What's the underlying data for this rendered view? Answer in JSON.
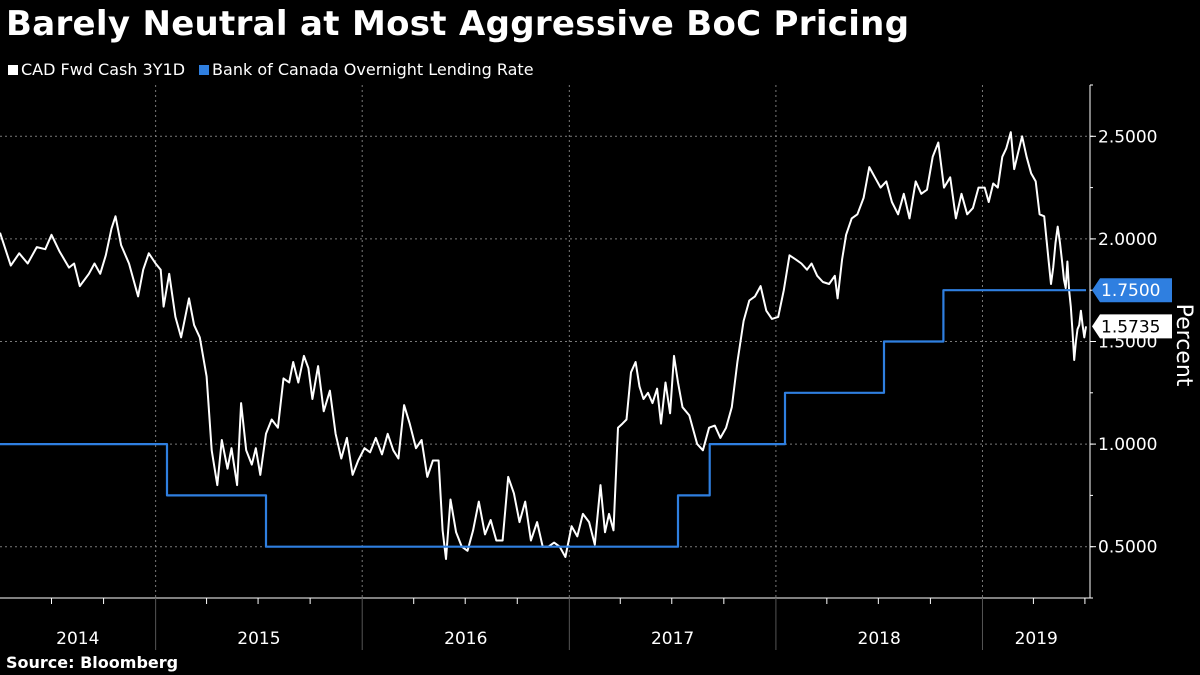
{
  "title": "Barely Neutral at Most Aggressive BoC Pricing",
  "source": "Source: Bloomberg",
  "colors": {
    "background": "#000000",
    "cad_fwd": "#ffffff",
    "boc_rate": "#2f7fe0",
    "grid": "#7a7a7a"
  },
  "chart_data": {
    "type": "line",
    "title": "Barely Neutral at Most Aggressive BoC Pricing",
    "xlabel": "",
    "ylabel": "Percent",
    "ylim": [
      0.25,
      2.75
    ],
    "xlim": [
      "2014-04-01",
      "2019-06-01"
    ],
    "y_ticks": [
      "0.5000",
      "1.0000",
      "1.5000",
      "2.0000",
      "2.5000"
    ],
    "x_ticks": [
      "2014",
      "2015",
      "2016",
      "2017",
      "2018",
      "2019"
    ],
    "grid": true,
    "legend_position": "top-left",
    "series": [
      {
        "name": "CAD Fwd Cash 3Y1D",
        "last_value": "1.5735",
        "points": [
          [
            "2014-04-01",
            2.03
          ],
          [
            "2014-04-20",
            1.87
          ],
          [
            "2014-05-05",
            1.93
          ],
          [
            "2014-05-20",
            1.88
          ],
          [
            "2014-06-05",
            1.96
          ],
          [
            "2014-06-20",
            1.95
          ],
          [
            "2014-07-01",
            2.02
          ],
          [
            "2014-07-15",
            1.94
          ],
          [
            "2014-08-01",
            1.86
          ],
          [
            "2014-08-10",
            1.88
          ],
          [
            "2014-08-20",
            1.77
          ],
          [
            "2014-09-05",
            1.83
          ],
          [
            "2014-09-15",
            1.88
          ],
          [
            "2014-09-25",
            1.83
          ],
          [
            "2014-10-05",
            1.92
          ],
          [
            "2014-10-15",
            2.05
          ],
          [
            "2014-10-22",
            2.11
          ],
          [
            "2014-11-01",
            1.97
          ],
          [
            "2014-11-15",
            1.88
          ],
          [
            "2014-12-01",
            1.72
          ],
          [
            "2014-12-10",
            1.85
          ],
          [
            "2014-12-20",
            1.93
          ],
          [
            "2015-01-01",
            1.88
          ],
          [
            "2015-01-10",
            1.85
          ],
          [
            "2015-01-15",
            1.67
          ],
          [
            "2015-01-25",
            1.83
          ],
          [
            "2015-02-05",
            1.62
          ],
          [
            "2015-02-15",
            1.52
          ],
          [
            "2015-03-01",
            1.71
          ],
          [
            "2015-03-10",
            1.58
          ],
          [
            "2015-03-20",
            1.52
          ],
          [
            "2015-04-01",
            1.33
          ],
          [
            "2015-04-10",
            0.97
          ],
          [
            "2015-04-20",
            0.8
          ],
          [
            "2015-04-28",
            1.02
          ],
          [
            "2015-05-08",
            0.88
          ],
          [
            "2015-05-15",
            0.98
          ],
          [
            "2015-05-25",
            0.8
          ],
          [
            "2015-06-01",
            1.2
          ],
          [
            "2015-06-10",
            0.97
          ],
          [
            "2015-06-20",
            0.9
          ],
          [
            "2015-06-27",
            0.98
          ],
          [
            "2015-07-05",
            0.85
          ],
          [
            "2015-07-15",
            1.05
          ],
          [
            "2015-07-25",
            1.12
          ],
          [
            "2015-08-05",
            1.08
          ],
          [
            "2015-08-15",
            1.32
          ],
          [
            "2015-08-25",
            1.3
          ],
          [
            "2015-09-01",
            1.4
          ],
          [
            "2015-09-10",
            1.3
          ],
          [
            "2015-09-20",
            1.43
          ],
          [
            "2015-09-28",
            1.37
          ],
          [
            "2015-10-05",
            1.22
          ],
          [
            "2015-10-15",
            1.38
          ],
          [
            "2015-10-25",
            1.16
          ],
          [
            "2015-11-05",
            1.26
          ],
          [
            "2015-11-15",
            1.05
          ],
          [
            "2015-11-25",
            0.93
          ],
          [
            "2015-12-05",
            1.03
          ],
          [
            "2015-12-15",
            0.85
          ],
          [
            "2015-12-25",
            0.92
          ],
          [
            "2016-01-05",
            0.98
          ],
          [
            "2016-01-15",
            0.96
          ],
          [
            "2016-01-25",
            1.03
          ],
          [
            "2016-02-05",
            0.95
          ],
          [
            "2016-02-15",
            1.05
          ],
          [
            "2016-02-25",
            0.97
          ],
          [
            "2016-03-05",
            0.93
          ],
          [
            "2016-03-15",
            1.19
          ],
          [
            "2016-03-25",
            1.1
          ],
          [
            "2016-04-05",
            0.98
          ],
          [
            "2016-04-15",
            1.02
          ],
          [
            "2016-04-25",
            0.84
          ],
          [
            "2016-05-05",
            0.92
          ],
          [
            "2016-05-15",
            0.92
          ],
          [
            "2016-05-22",
            0.58
          ],
          [
            "2016-05-28",
            0.44
          ],
          [
            "2016-06-05",
            0.73
          ],
          [
            "2016-06-15",
            0.57
          ],
          [
            "2016-06-25",
            0.5
          ],
          [
            "2016-07-05",
            0.48
          ],
          [
            "2016-07-15",
            0.58
          ],
          [
            "2016-07-25",
            0.72
          ],
          [
            "2016-08-05",
            0.56
          ],
          [
            "2016-08-15",
            0.63
          ],
          [
            "2016-08-25",
            0.53
          ],
          [
            "2016-09-05",
            0.53
          ],
          [
            "2016-09-15",
            0.84
          ],
          [
            "2016-09-25",
            0.76
          ],
          [
            "2016-10-05",
            0.62
          ],
          [
            "2016-10-15",
            0.72
          ],
          [
            "2016-10-25",
            0.53
          ],
          [
            "2016-11-05",
            0.62
          ],
          [
            "2016-11-15",
            0.5
          ],
          [
            "2016-11-25",
            0.5
          ],
          [
            "2016-12-05",
            0.52
          ],
          [
            "2016-12-15",
            0.5
          ],
          [
            "2016-12-25",
            0.45
          ],
          [
            "2017-01-05",
            0.6
          ],
          [
            "2017-01-15",
            0.55
          ],
          [
            "2017-01-25",
            0.66
          ],
          [
            "2017-02-05",
            0.62
          ],
          [
            "2017-02-15",
            0.51
          ],
          [
            "2017-02-25",
            0.8
          ],
          [
            "2017-03-05",
            0.57
          ],
          [
            "2017-03-12",
            0.66
          ],
          [
            "2017-03-20",
            0.58
          ],
          [
            "2017-03-28",
            1.08
          ],
          [
            "2017-04-05",
            1.1
          ],
          [
            "2017-04-12",
            1.12
          ],
          [
            "2017-04-20",
            1.35
          ],
          [
            "2017-04-28",
            1.4
          ],
          [
            "2017-05-05",
            1.28
          ],
          [
            "2017-05-12",
            1.22
          ],
          [
            "2017-05-20",
            1.25
          ],
          [
            "2017-05-28",
            1.2
          ],
          [
            "2017-06-05",
            1.27
          ],
          [
            "2017-06-12",
            1.1
          ],
          [
            "2017-06-20",
            1.3
          ],
          [
            "2017-06-28",
            1.15
          ],
          [
            "2017-07-05",
            1.43
          ],
          [
            "2017-07-12",
            1.3
          ],
          [
            "2017-07-20",
            1.18
          ],
          [
            "2017-08-01",
            1.14
          ],
          [
            "2017-08-15",
            1.0
          ],
          [
            "2017-08-25",
            0.97
          ],
          [
            "2017-09-05",
            1.08
          ],
          [
            "2017-09-15",
            1.09
          ],
          [
            "2017-09-25",
            1.03
          ],
          [
            "2017-10-05",
            1.08
          ],
          [
            "2017-10-15",
            1.18
          ],
          [
            "2017-10-25",
            1.4
          ],
          [
            "2017-11-05",
            1.6
          ],
          [
            "2017-11-15",
            1.7
          ],
          [
            "2017-11-25",
            1.72
          ],
          [
            "2017-12-05",
            1.77
          ],
          [
            "2017-12-15",
            1.65
          ],
          [
            "2017-12-25",
            1.61
          ],
          [
            "2018-01-05",
            1.62
          ],
          [
            "2018-01-15",
            1.75
          ],
          [
            "2018-01-25",
            1.92
          ],
          [
            "2018-02-05",
            1.9
          ],
          [
            "2018-02-15",
            1.88
          ],
          [
            "2018-02-25",
            1.85
          ],
          [
            "2018-03-05",
            1.88
          ],
          [
            "2018-03-15",
            1.82
          ],
          [
            "2018-03-25",
            1.79
          ],
          [
            "2018-04-05",
            1.78
          ],
          [
            "2018-04-15",
            1.82
          ],
          [
            "2018-04-20",
            1.71
          ],
          [
            "2018-04-28",
            1.9
          ],
          [
            "2018-05-05",
            2.02
          ],
          [
            "2018-05-15",
            2.1
          ],
          [
            "2018-05-25",
            2.12
          ],
          [
            "2018-06-05",
            2.2
          ],
          [
            "2018-06-15",
            2.35
          ],
          [
            "2018-06-25",
            2.3
          ],
          [
            "2018-07-05",
            2.25
          ],
          [
            "2018-07-15",
            2.28
          ],
          [
            "2018-07-25",
            2.18
          ],
          [
            "2018-08-05",
            2.12
          ],
          [
            "2018-08-15",
            2.22
          ],
          [
            "2018-08-25",
            2.1
          ],
          [
            "2018-09-05",
            2.28
          ],
          [
            "2018-09-15",
            2.22
          ],
          [
            "2018-09-25",
            2.24
          ],
          [
            "2018-10-05",
            2.4
          ],
          [
            "2018-10-15",
            2.47
          ],
          [
            "2018-10-25",
            2.25
          ],
          [
            "2018-11-05",
            2.3
          ],
          [
            "2018-11-15",
            2.1
          ],
          [
            "2018-11-25",
            2.22
          ],
          [
            "2018-12-05",
            2.12
          ],
          [
            "2018-12-15",
            2.15
          ],
          [
            "2018-12-25",
            2.25
          ],
          [
            "2019-01-05",
            2.25
          ],
          [
            "2019-01-12",
            2.18
          ],
          [
            "2019-01-20",
            2.27
          ],
          [
            "2019-01-28",
            2.25
          ],
          [
            "2019-02-05",
            2.4
          ],
          [
            "2019-02-12",
            2.44
          ],
          [
            "2019-02-20",
            2.52
          ],
          [
            "2019-02-26",
            2.34
          ],
          [
            "2019-03-05",
            2.42
          ],
          [
            "2019-03-12",
            2.5
          ],
          [
            "2019-03-20",
            2.4
          ],
          [
            "2019-03-28",
            2.32
          ],
          [
            "2019-04-05",
            2.28
          ],
          [
            "2019-04-12",
            2.12
          ],
          [
            "2019-04-20",
            2.11
          ],
          [
            "2019-04-28",
            1.89
          ],
          [
            "2019-05-02",
            1.78
          ],
          [
            "2019-05-06",
            1.86
          ],
          [
            "2019-05-10",
            1.98
          ],
          [
            "2019-05-14",
            2.06
          ],
          [
            "2019-05-18",
            1.98
          ],
          [
            "2019-05-22",
            1.88
          ],
          [
            "2019-05-25",
            1.8
          ],
          [
            "2019-05-28",
            1.76
          ],
          [
            "2019-05-31",
            1.89
          ],
          [
            "2019-06-03",
            1.75
          ],
          [
            "2019-06-06",
            1.67
          ],
          [
            "2019-06-09",
            1.55
          ],
          [
            "2019-06-12",
            1.41
          ],
          [
            "2019-06-15",
            1.5
          ],
          [
            "2019-06-18",
            1.56
          ],
          [
            "2019-06-21",
            1.58
          ],
          [
            "2019-06-24",
            1.65
          ],
          [
            "2019-06-27",
            1.58
          ],
          [
            "2019-06-30",
            1.52
          ],
          [
            "2019-07-03",
            1.5735
          ]
        ]
      },
      {
        "name": "Bank of Canada Overnight Lending Rate",
        "last_value": "1.7500",
        "step": true,
        "points": [
          [
            "2014-04-01",
            1.0
          ],
          [
            "2015-01-21",
            1.0
          ],
          [
            "2015-01-21",
            0.75
          ],
          [
            "2015-07-15",
            0.75
          ],
          [
            "2015-07-15",
            0.5
          ],
          [
            "2017-07-12",
            0.5
          ],
          [
            "2017-07-12",
            0.75
          ],
          [
            "2017-09-06",
            0.75
          ],
          [
            "2017-09-06",
            1.0
          ],
          [
            "2018-01-17",
            1.0
          ],
          [
            "2018-01-17",
            1.25
          ],
          [
            "2018-07-11",
            1.25
          ],
          [
            "2018-07-11",
            1.5
          ],
          [
            "2018-10-24",
            1.5
          ],
          [
            "2018-10-24",
            1.75
          ],
          [
            "2019-07-03",
            1.75
          ]
        ]
      }
    ]
  }
}
